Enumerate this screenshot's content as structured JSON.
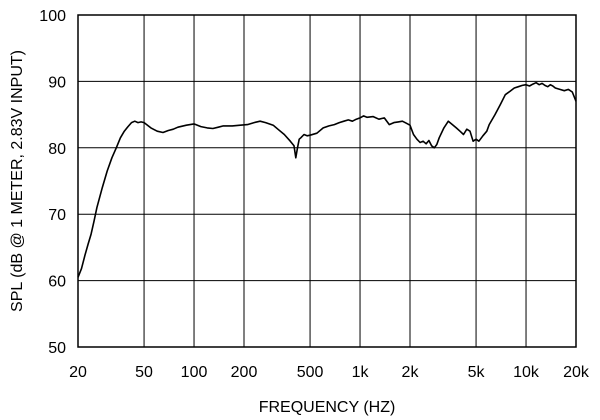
{
  "chart_data": {
    "type": "line",
    "title": "",
    "xlabel": "FREQUENCY (HZ)",
    "ylabel": "SPL (dB @ 1 METER, 2.83V INPUT)",
    "x_scale": "log",
    "xlim": [
      20,
      20000
    ],
    "ylim": [
      50,
      100
    ],
    "grid": true,
    "x_ticks": [
      {
        "value": 20,
        "label": "20"
      },
      {
        "value": 50,
        "label": "50"
      },
      {
        "value": 100,
        "label": "100"
      },
      {
        "value": 200,
        "label": "200"
      },
      {
        "value": 500,
        "label": "500"
      },
      {
        "value": 1000,
        "label": "1k"
      },
      {
        "value": 2000,
        "label": "2k"
      },
      {
        "value": 5000,
        "label": "5k"
      },
      {
        "value": 10000,
        "label": "10k"
      },
      {
        "value": 20000,
        "label": "20k"
      }
    ],
    "y_ticks": [
      50,
      60,
      70,
      80,
      90,
      100
    ],
    "series": [
      {
        "name": "",
        "color": "#000000",
        "x": [
          20,
          21,
          22,
          23,
          24,
          25,
          26,
          27,
          28,
          30,
          32,
          34,
          36,
          38,
          40,
          42,
          44,
          46,
          48,
          50,
          55,
          60,
          65,
          70,
          75,
          80,
          90,
          100,
          110,
          120,
          130,
          140,
          150,
          170,
          190,
          210,
          230,
          250,
          270,
          300,
          320,
          350,
          380,
          400,
          410,
          420,
          430,
          440,
          460,
          480,
          500,
          550,
          600,
          650,
          700,
          750,
          800,
          850,
          900,
          950,
          1000,
          1050,
          1100,
          1200,
          1300,
          1400,
          1500,
          1600,
          1700,
          1800,
          1900,
          2000,
          2100,
          2200,
          2300,
          2400,
          2500,
          2600,
          2700,
          2800,
          2900,
          3000,
          3200,
          3400,
          3600,
          3800,
          4000,
          4200,
          4400,
          4600,
          4800,
          5000,
          5200,
          5500,
          5800,
          6000,
          6500,
          7000,
          7500,
          8000,
          8500,
          9000,
          9500,
          10000,
          10500,
          11000,
          11500,
          12000,
          12500,
          13000,
          13500,
          14000,
          14500,
          15000,
          16000,
          17000,
          18000,
          19000,
          20000
        ],
        "y": [
          60.5,
          61.8,
          63.8,
          65.5,
          67.0,
          69.0,
          71.0,
          72.5,
          74.0,
          76.5,
          78.5,
          80.0,
          81.5,
          82.5,
          83.2,
          83.8,
          84.0,
          83.8,
          83.9,
          83.8,
          83.0,
          82.5,
          82.3,
          82.6,
          82.8,
          83.1,
          83.4,
          83.6,
          83.2,
          83.0,
          82.9,
          83.1,
          83.3,
          83.3,
          83.4,
          83.5,
          83.8,
          84.0,
          83.8,
          83.4,
          82.8,
          82.0,
          81.0,
          80.3,
          78.5,
          80.0,
          81.3,
          81.5,
          82.0,
          81.8,
          81.9,
          82.2,
          83.0,
          83.3,
          83.5,
          83.8,
          84.0,
          84.2,
          84.0,
          84.3,
          84.5,
          84.8,
          84.6,
          84.7,
          84.3,
          84.5,
          83.5,
          83.8,
          83.9,
          84.0,
          83.7,
          83.4,
          82.0,
          81.3,
          80.8,
          81.0,
          80.6,
          81.1,
          80.3,
          80.0,
          80.5,
          81.5,
          83.0,
          84.0,
          83.5,
          83.0,
          82.5,
          82.0,
          82.8,
          82.5,
          81.0,
          81.3,
          81.0,
          81.8,
          82.5,
          83.5,
          85.0,
          86.5,
          88.0,
          88.5,
          89.0,
          89.2,
          89.4,
          89.5,
          89.3,
          89.6,
          89.8,
          89.5,
          89.7,
          89.4,
          89.2,
          89.5,
          89.3,
          89.0,
          88.8,
          88.6,
          88.8,
          88.4,
          87.0
        ]
      }
    ]
  }
}
